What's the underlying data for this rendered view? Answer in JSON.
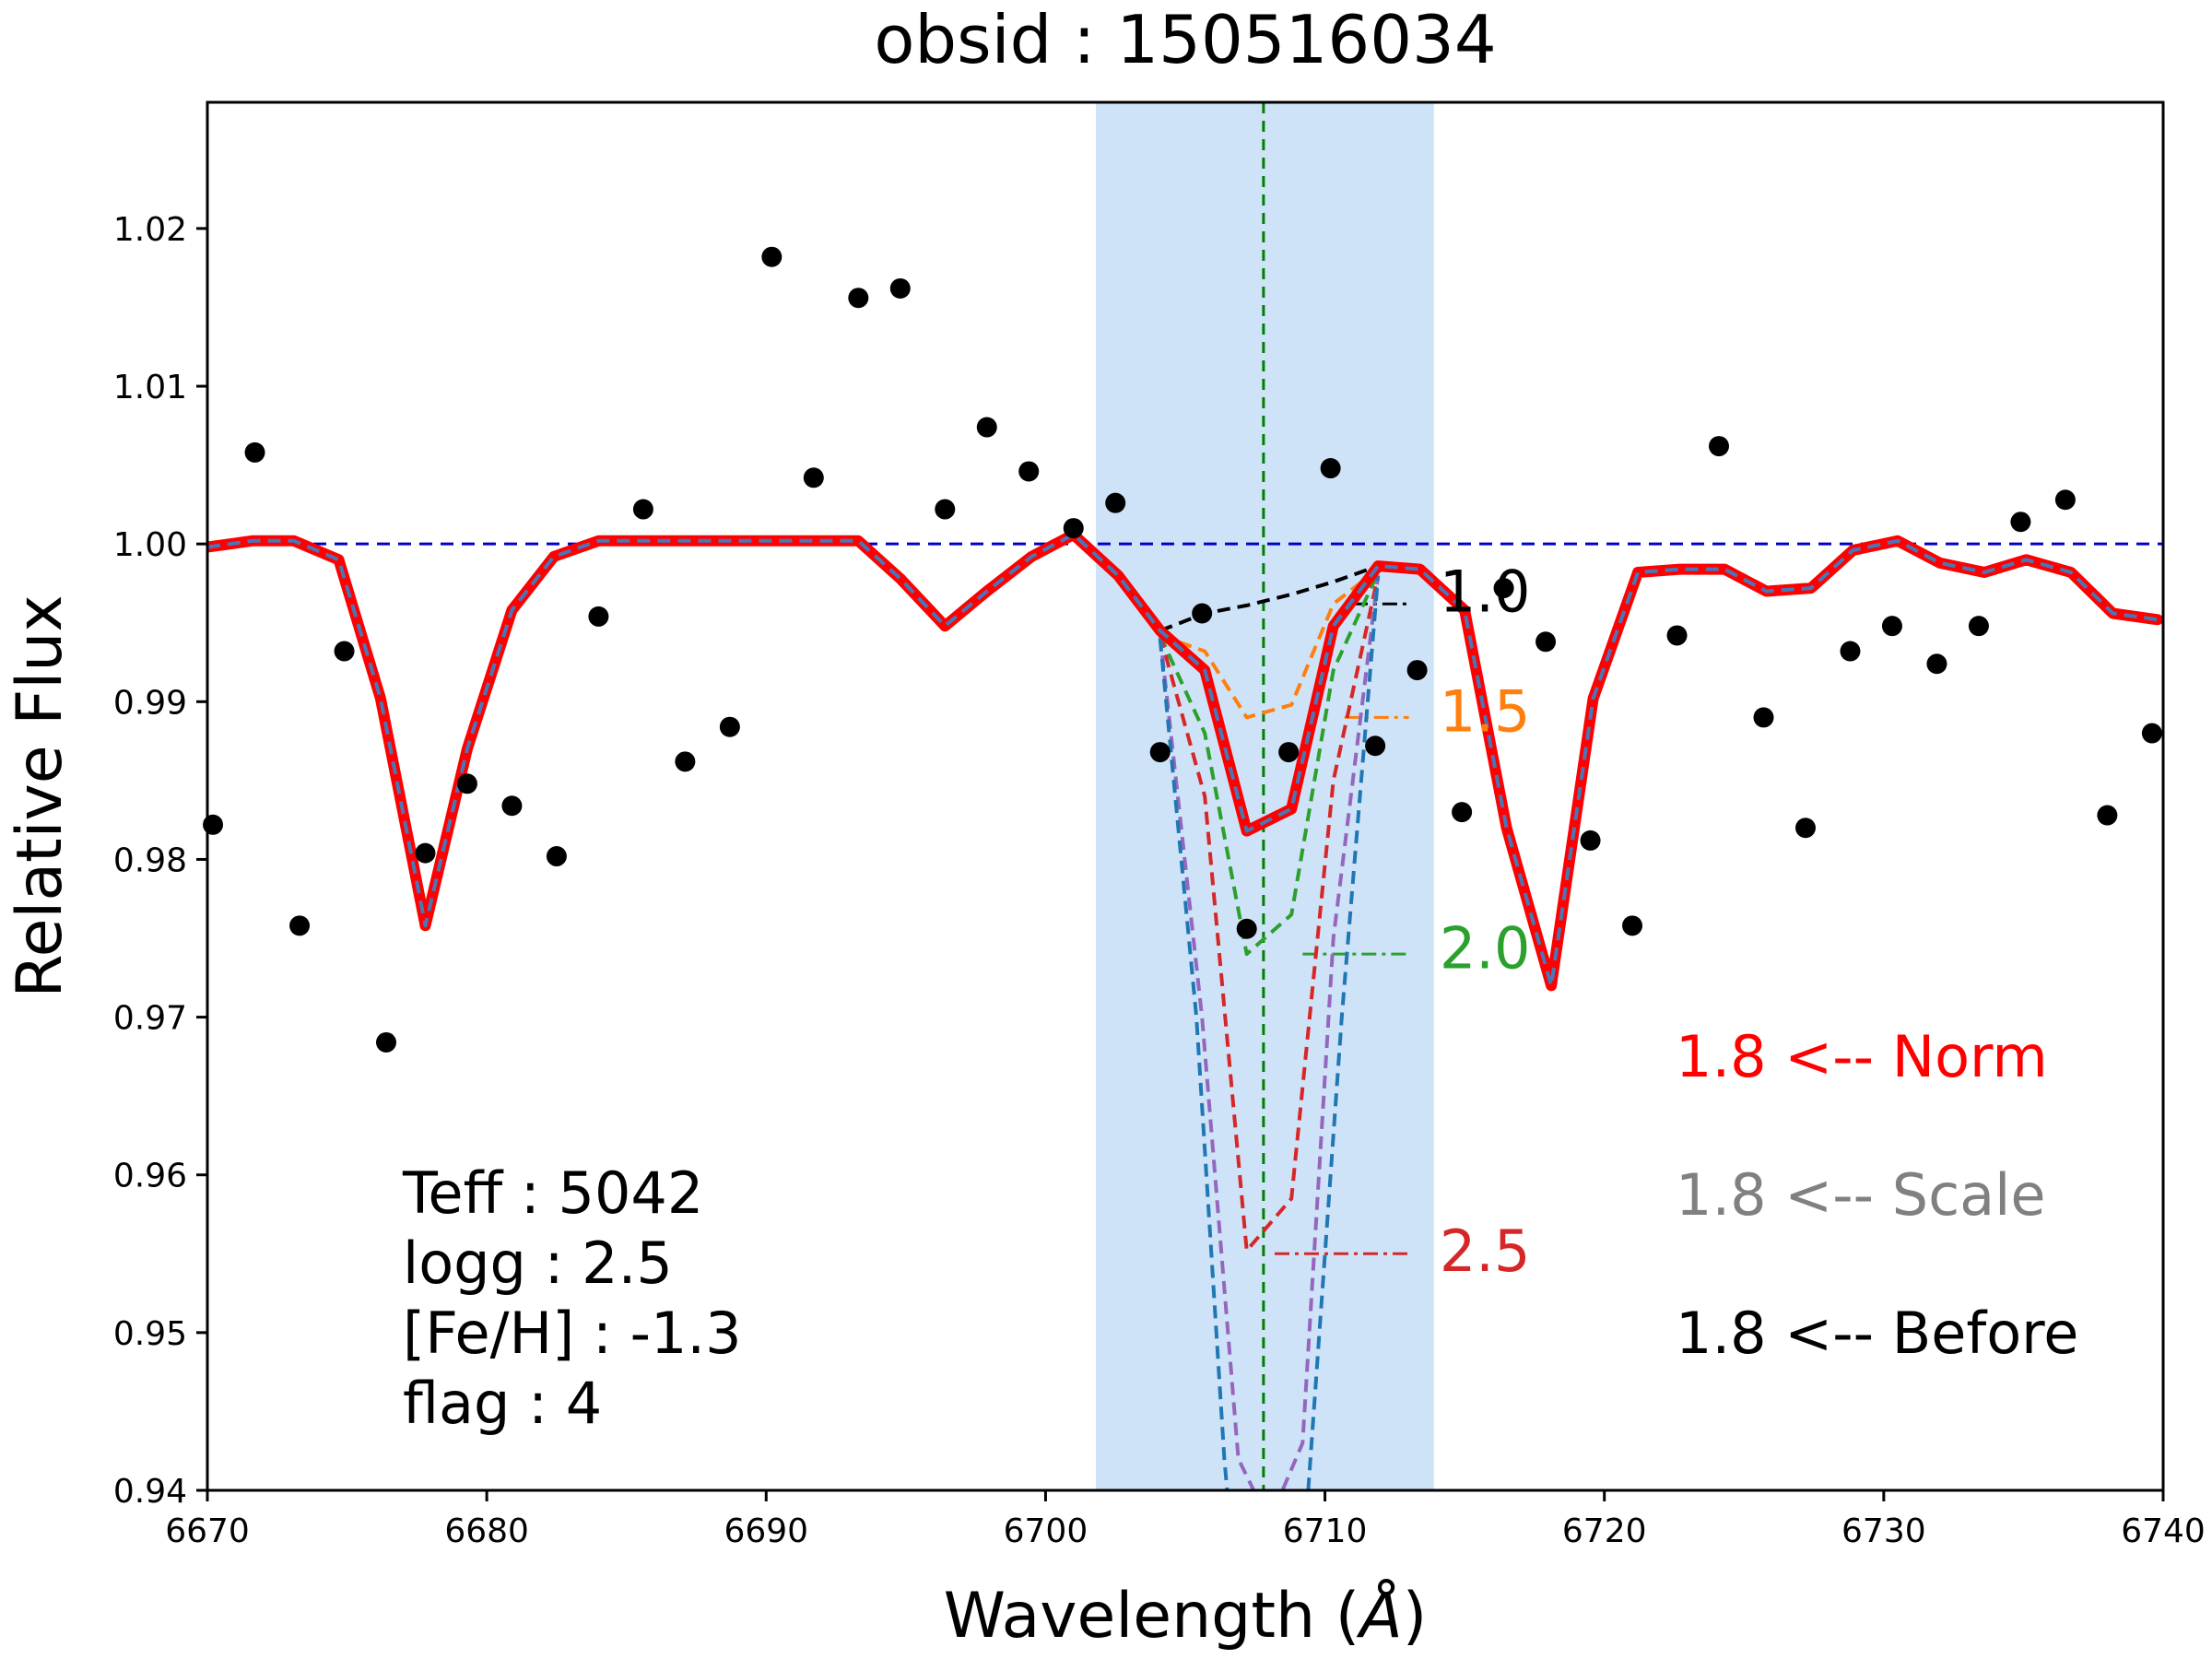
{
  "chart_data": {
    "type": "line",
    "title": "obsid : 150516034",
    "xlabel_text": "Wavelength (",
    "xlabel_unit": "Å",
    "xlabel_close": ")",
    "ylabel": "Relative Flux",
    "xlim": [
      6670,
      6740
    ],
    "ylim": [
      0.94,
      1.028
    ],
    "xticks": [
      6670,
      6680,
      6690,
      6700,
      6710,
      6720,
      6730,
      6740
    ],
    "yticks": [
      0.94,
      0.95,
      0.96,
      0.97,
      0.98,
      0.99,
      1.0,
      1.01,
      1.02
    ],
    "ytick_labels": [
      "0.94",
      "0.95",
      "0.96",
      "0.97",
      "0.98",
      "0.99",
      "1.00",
      "1.01",
      "1.02"
    ],
    "grid": false,
    "highlight_band": {
      "x0": 6701.8,
      "x1": 6713.9,
      "color": "#cfe3f8"
    },
    "continuum_line": {
      "y": 1.0,
      "color": "#0000cc"
    },
    "center_line": {
      "x": 6707.8,
      "color": "#008000"
    },
    "observed_points": {
      "color": "#000000",
      "x": [
        6670.2,
        6671.7,
        6673.3,
        6674.9,
        6676.4,
        6677.8,
        6679.3,
        6680.9,
        6682.5,
        6684.0,
        6685.6,
        6687.1,
        6688.7,
        6690.2,
        6691.7,
        6693.3,
        6694.8,
        6696.4,
        6697.9,
        6699.4,
        6701.0,
        6702.5,
        6704.1,
        6705.6,
        6707.2,
        6708.7,
        6710.2,
        6711.8,
        6713.3,
        6714.9,
        6716.4,
        6717.9,
        6719.5,
        6721.0,
        6722.6,
        6724.1,
        6725.7,
        6727.2,
        6728.8,
        6730.3,
        6731.9,
        6733.4,
        6734.9,
        6736.5,
        6738.0,
        6739.6
      ],
      "y": [
        0.9822,
        1.0058,
        0.9758,
        0.9932,
        0.9684,
        0.9804,
        0.9848,
        0.9834,
        0.9802,
        0.9954,
        1.0022,
        0.9862,
        0.9884,
        1.0182,
        1.0042,
        1.0156,
        1.0162,
        1.0022,
        1.0074,
        1.0046,
        1.001,
        1.0026,
        0.9868,
        0.9956,
        0.9756,
        0.9868,
        1.0048,
        0.9872,
        0.992,
        0.983,
        0.9972,
        0.9938,
        0.9812,
        0.9758,
        0.9942,
        1.0062,
        0.989,
        0.982,
        0.9932,
        0.9948,
        0.9924,
        0.9948,
        1.0014,
        1.0028,
        0.9828,
        0.988
      ]
    },
    "model_x": [
      6670.0,
      6671.6,
      6673.1,
      6674.7,
      6676.2,
      6677.8,
      6679.3,
      6680.9,
      6682.4,
      6684.0,
      6685.5,
      6687.1,
      6688.6,
      6690.2,
      6691.7,
      6693.3,
      6694.8,
      6696.4,
      6697.9,
      6699.5,
      6701.0,
      6702.6,
      6704.1,
      6705.7,
      6707.2,
      6708.8,
      6710.3,
      6711.9,
      6713.4,
      6715.0,
      6716.5,
      6718.1,
      6719.6,
      6721.2,
      6722.7,
      6724.3,
      6725.8,
      6727.4,
      6728.9,
      6730.5,
      6732.0,
      6733.6,
      6735.1,
      6736.7,
      6738.2,
      6739.8
    ],
    "model_y": [
      0.9998,
      1.0002,
      1.0002,
      0.999,
      0.9902,
      0.9758,
      0.987,
      0.9958,
      0.9992,
      1.0002,
      1.0002,
      1.0002,
      1.0002,
      1.0002,
      1.0002,
      1.0002,
      0.9978,
      0.9948,
      0.997,
      0.9992,
      1.0006,
      0.998,
      0.9945,
      0.992,
      0.9818,
      0.9832,
      0.9948,
      0.9986,
      0.9984,
      0.9958,
      0.982,
      0.972,
      0.9902,
      0.9982,
      0.9984,
      0.9984,
      0.997,
      0.9972,
      0.9996,
      1.0002,
      0.9988,
      0.9982,
      0.999,
      0.9982,
      0.9956,
      0.9952
    ],
    "series": [
      {
        "label": "1.0",
        "color": "#000000",
        "x": [
          6704.1,
          6705.7,
          6707.2,
          6708.8,
          6710.3,
          6711.9
        ],
        "y": [
          0.9945,
          0.9956,
          0.9961,
          0.9968,
          0.9976,
          0.9986
        ],
        "label_at": [
          6711.0,
          0.9962
        ],
        "text_at": [
          6714.1,
          0.997
        ]
      },
      {
        "label": "1.5",
        "color": "#ff7f0e",
        "x": [
          6704.1,
          6705.7,
          6707.2,
          6708.8,
          6710.3,
          6711.9
        ],
        "y": [
          0.9942,
          0.9932,
          0.989,
          0.9898,
          0.9962,
          0.9984
        ],
        "label_at": [
          6710.7,
          0.989
        ],
        "text_at": [
          6714.1,
          0.9894
        ]
      },
      {
        "label": "2.0",
        "color": "#2ca02c",
        "x": [
          6704.1,
          6705.7,
          6707.2,
          6708.8,
          6710.3,
          6711.9
        ],
        "y": [
          0.9942,
          0.988,
          0.974,
          0.9765,
          0.992,
          0.9982
        ],
        "label_at": [
          6709.2,
          0.974
        ],
        "text_at": [
          6714.1,
          0.9744
        ]
      },
      {
        "label": "2.5",
        "color": "#d62728",
        "x": [
          6704.1,
          6705.7,
          6707.2,
          6708.8,
          6710.3,
          6711.9
        ],
        "y": [
          0.9942,
          0.984,
          0.9552,
          0.9585,
          0.985,
          0.998
        ],
        "label_at": [
          6708.2,
          0.955
        ],
        "text_at": [
          6714.1,
          0.9552
        ]
      },
      {
        "label": "",
        "color": "#9467bd",
        "x": [
          6704.1,
          6705.6,
          6706.9,
          6708.0,
          6709.2,
          6710.3,
          6711.9
        ],
        "y": [
          0.9942,
          0.97,
          0.942,
          0.938,
          0.943,
          0.975,
          0.998
        ]
      },
      {
        "label": "",
        "color": "#1f77b4",
        "x": [
          6704.1,
          6705.4,
          6706.4,
          6707.0,
          6708.6,
          6709.4,
          6710.6,
          6711.9
        ],
        "y": [
          0.994,
          0.97,
          0.942,
          0.93,
          0.93,
          0.94,
          0.97,
          0.998
        ]
      }
    ],
    "params": [
      {
        "label": "Teff : 5042"
      },
      {
        "label": "logg : 2.5"
      },
      {
        "label": "[Fe/H] : -1.3"
      },
      {
        "label": "flag : 4"
      }
    ],
    "results": [
      {
        "label": "1.8 <-- Norm",
        "color": "#ff0000"
      },
      {
        "label": "1.8 <-- Scale",
        "color": "#808080"
      },
      {
        "label": "1.8 <-- Before",
        "color": "#000000"
      }
    ]
  }
}
